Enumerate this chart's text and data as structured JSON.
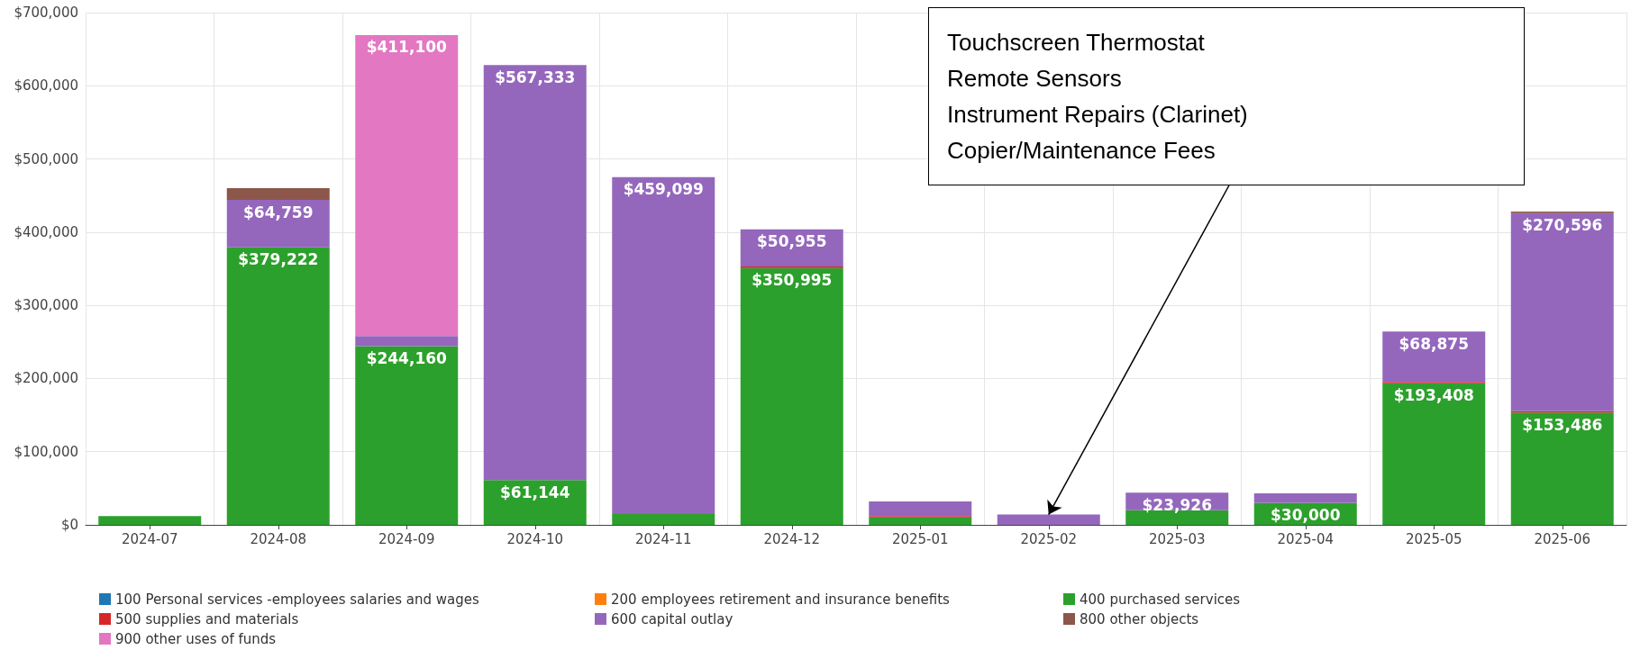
{
  "chart_data": {
    "type": "bar",
    "stacked": true,
    "grid": true,
    "legend": "bottom",
    "categories": [
      "2024-07",
      "2024-08",
      "2024-09",
      "2024-10",
      "2024-11",
      "2024-12",
      "2025-01",
      "2025-02",
      "2025-03",
      "2025-04",
      "2025-05",
      "2025-06"
    ],
    "ylim": [
      0,
      700000
    ],
    "yticks": [
      {
        "value": 0,
        "label": "$0"
      },
      {
        "value": 100000,
        "label": "$100,000"
      },
      {
        "value": 200000,
        "label": "$200,000"
      },
      {
        "value": 300000,
        "label": "$300,000"
      },
      {
        "value": 400000,
        "label": "$400,000"
      },
      {
        "value": 500000,
        "label": "$500,000"
      },
      {
        "value": 600000,
        "label": "$600,000"
      },
      {
        "value": 700000,
        "label": "$700,000"
      }
    ],
    "series": [
      {
        "name": "100 Personal services -employees salaries and wages",
        "color": "#1f77b4",
        "values": [
          null,
          null,
          null,
          null,
          null,
          null,
          null,
          null,
          null,
          null,
          null,
          null
        ]
      },
      {
        "name": "200 employees retirement and insurance benefits",
        "color": "#ff7f0e",
        "values": [
          null,
          null,
          null,
          null,
          null,
          null,
          null,
          null,
          null,
          null,
          null,
          null
        ]
      },
      {
        "name": "400 purchased services",
        "color": "#2ca02c",
        "values": [
          12000,
          379222,
          244160,
          61144,
          15000,
          350995,
          10000,
          null,
          20000,
          30000,
          193408,
          153486
        ],
        "value_labels": [
          null,
          "$379,222",
          "$244,160",
          "$61,144",
          null,
          "$350,995",
          null,
          null,
          null,
          "$30,000",
          "$193,408",
          "$153,486"
        ]
      },
      {
        "name": "500 supplies and materials",
        "color": "#d62728",
        "values": [
          null,
          null,
          null,
          null,
          1000,
          2000,
          2000,
          null,
          null,
          null,
          2000,
          2000
        ]
      },
      {
        "name": "600 capital outlay",
        "color": "#9467bd",
        "values": [
          null,
          64759,
          14000,
          567333,
          459099,
          50955,
          20000,
          14000,
          23926,
          13000,
          68875,
          270596
        ],
        "value_labels": [
          null,
          "$64,759",
          null,
          "$567,333",
          "$459,099",
          "$50,955",
          null,
          null,
          "$23,926",
          null,
          "$68,875",
          "$270,596"
        ]
      },
      {
        "name": "800 other objects",
        "color": "#8c564b",
        "values": [
          null,
          16000,
          null,
          null,
          null,
          null,
          null,
          null,
          null,
          null,
          null,
          2000
        ]
      },
      {
        "name": "900 other uses of funds",
        "color": "#e377c2",
        "values": [
          null,
          null,
          411100,
          null,
          null,
          null,
          null,
          null,
          null,
          null,
          null,
          null
        ],
        "value_labels": [
          null,
          null,
          "$411,100",
          null,
          null,
          null,
          null,
          null,
          null,
          null,
          null,
          null
        ]
      }
    ],
    "annotations": [
      {
        "text": "Touchscreen Thermostat\nRemote Sensors\nInstrument Repairs (Clarinet)\nCopier/Maintenance Fees",
        "x": "2025-02",
        "y": 14000
      }
    ]
  }
}
